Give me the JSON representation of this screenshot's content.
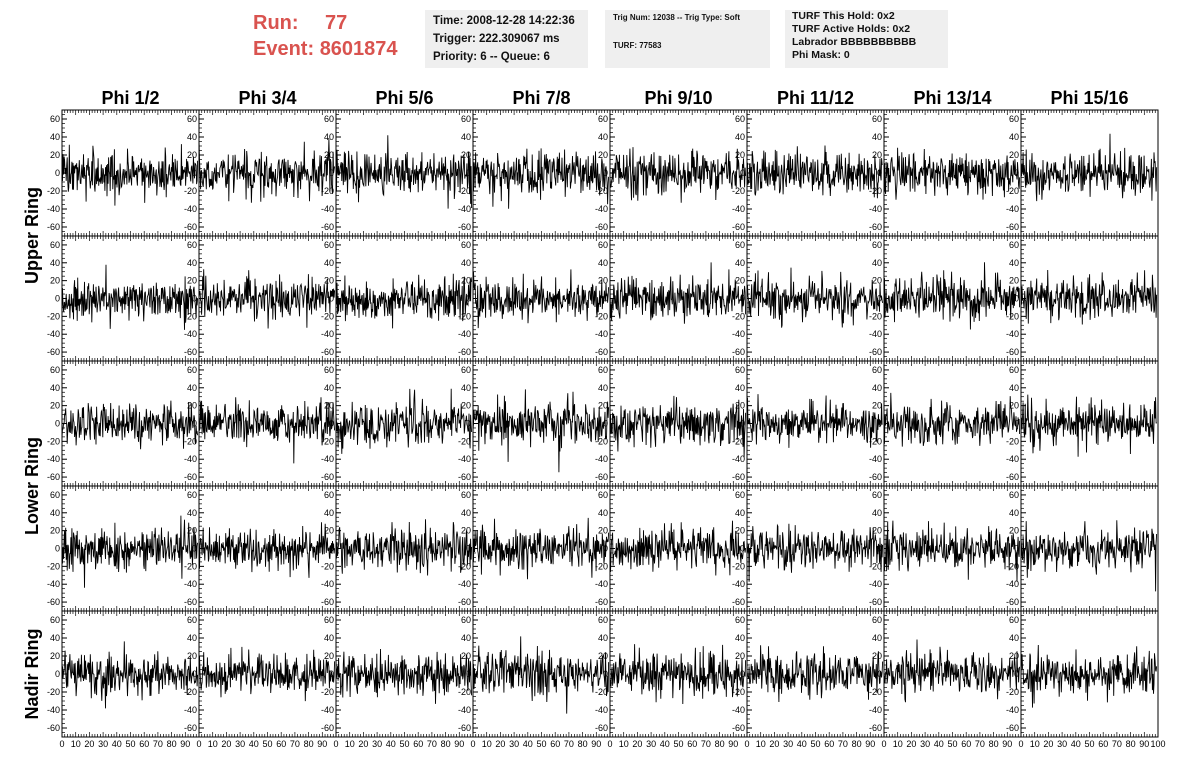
{
  "header": {
    "run_label": "Run:",
    "run_value": "77",
    "event_label": "Event:",
    "event_value": "8601874",
    "time": "Time: 2008-12-28 14:22:36",
    "trigger": "Trigger: 222.309067 ms",
    "priority": "Priority: 6 -- Queue: 6",
    "trig_info": "Trig Num: 12038 -- Trig Type: Soft",
    "turf": "TURF: 77583",
    "turf_this_hold": "TURF This Hold: 0x2",
    "turf_active_holds": "TURF Active Holds: 0x2",
    "labrador": "Labrador BBBBBBBBBB",
    "phi_mask": "Phi Mask: 0"
  },
  "colors": {
    "run_event": "#d9534f",
    "info_box": "#efefef",
    "trace": "#000000"
  },
  "chart_data": {
    "type": "line",
    "columns": [
      "Phi 1/2",
      "Phi 3/4",
      "Phi 5/6",
      "Phi 7/8",
      "Phi 9/10",
      "Phi 11/12",
      "Phi 13/14",
      "Phi 15/16"
    ],
    "rows": [
      "Upper Ring",
      "Upper Ring",
      "Lower Ring",
      "Lower Ring",
      "Nadir Ring"
    ],
    "row_labels": [
      {
        "text": "Upper Ring",
        "spans": [
          0,
          1
        ]
      },
      {
        "text": "Lower Ring",
        "spans": [
          2,
          3
        ]
      },
      {
        "text": "Nadir Ring",
        "spans": [
          4,
          4
        ]
      }
    ],
    "xlim": [
      0,
      100
    ],
    "ylim": [
      -70,
      70
    ],
    "ytick_values": [
      -60,
      -40,
      -20,
      0,
      20,
      40,
      60
    ],
    "ytick_labels": [
      "-60",
      "-40",
      "-20",
      "0",
      "20",
      "40",
      "60"
    ],
    "xtick_values": [
      0,
      10,
      20,
      30,
      40,
      50,
      60,
      70,
      80,
      90,
      100
    ],
    "samples_per_trace": 260,
    "trace_x_range": [
      0,
      99
    ],
    "trace_noise_rms": 12,
    "grid": false,
    "legend": "none"
  }
}
